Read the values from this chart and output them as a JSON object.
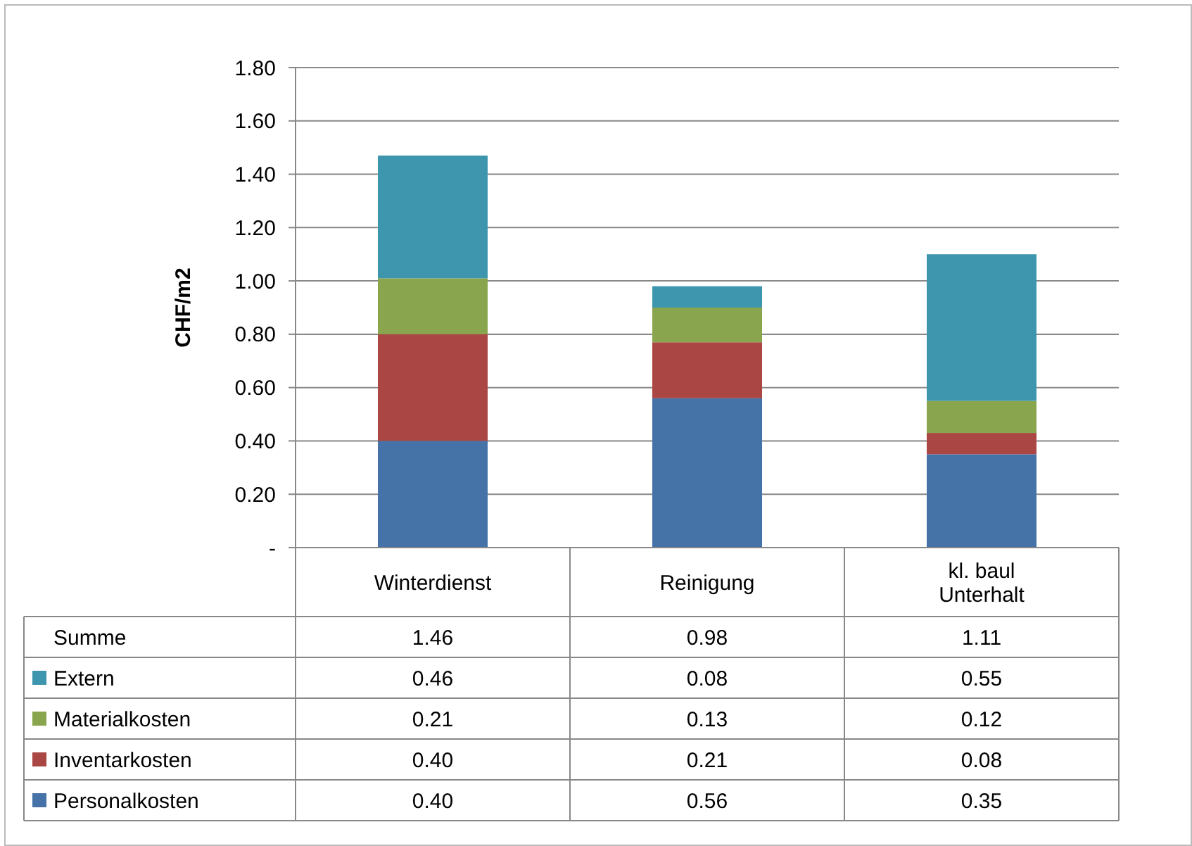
{
  "chart_data": {
    "type": "bar",
    "stacked": true,
    "ylabel": "CHF/m2",
    "categories": [
      "Winterdienst",
      "Reinigung",
      "kl. baul Unterhalt"
    ],
    "series": [
      {
        "name": "Personalkosten",
        "color": "#4572a7",
        "values": [
          0.4,
          0.56,
          0.35
        ],
        "value_labels": [
          "0.40",
          "0.56",
          "0.35"
        ]
      },
      {
        "name": "Inventarkosten",
        "color": "#aa4643",
        "values": [
          0.4,
          0.21,
          0.08
        ],
        "value_labels": [
          "0.40",
          "0.21",
          "0.08"
        ]
      },
      {
        "name": "Materialkosten",
        "color": "#89a54e",
        "values": [
          0.21,
          0.13,
          0.12
        ],
        "value_labels": [
          "0.21",
          "0.13",
          "0.12"
        ]
      },
      {
        "name": "Extern",
        "color": "#3d96ae",
        "values": [
          0.46,
          0.08,
          0.55
        ],
        "value_labels": [
          "0.46",
          "0.08",
          "0.55"
        ]
      }
    ],
    "ylim": [
      0,
      1.8
    ],
    "yticks": [
      {
        "value": 0,
        "label": "-"
      },
      {
        "value": 0.2,
        "label": "0.20"
      },
      {
        "value": 0.4,
        "label": "0.40"
      },
      {
        "value": 0.6,
        "label": "0.60"
      },
      {
        "value": 0.8,
        "label": "0.80"
      },
      {
        "value": 1,
        "label": "1.00"
      },
      {
        "value": 1.2,
        "label": "1.20"
      },
      {
        "value": 1.4,
        "label": "1.40"
      },
      {
        "value": 1.6,
        "label": "1.60"
      },
      {
        "value": 1.8,
        "label": "1.80"
      }
    ],
    "grid": "y",
    "legend": "bottom",
    "annotations": [
      "Summe",
      "1.46",
      "0.98",
      "1.11"
    ]
  }
}
